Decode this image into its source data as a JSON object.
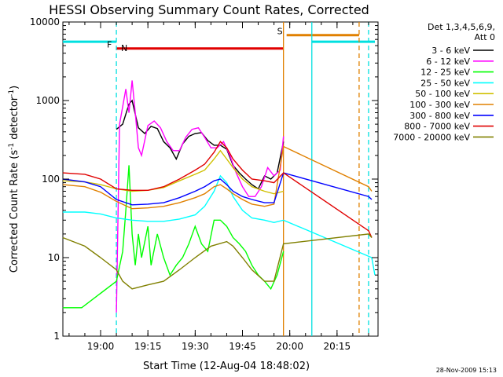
{
  "chart_data": {
    "type": "line",
    "title": "HESSI Observing Summary Count Rates, Corrected",
    "xlabel": "Start Time (12-Aug-04 18:48:02)",
    "ylabel_main": "Corrected Count Rate (s",
    "ylabel_sup1": "-1",
    "ylabel_mid": " detector",
    "ylabel_sup2": "-1",
    "ylabel_end": ")",
    "y_scale": "log",
    "ylim": [
      1,
      10000
    ],
    "xlim": [
      "18:48:02",
      "20:28:00"
    ],
    "x_ticks": [
      "19:00",
      "19:15",
      "19:30",
      "19:45",
      "20:00",
      "20:15"
    ],
    "y_ticks": [
      "1",
      "10",
      "100",
      "1000",
      "10000"
    ],
    "legend_header": [
      "Det 1,3,4,5,6,9,",
      "Att 0"
    ],
    "legend_position": "right",
    "footer_date": "28-Nov-2009 15:13",
    "markers": [
      {
        "label": "F",
        "color": "#e00000",
        "at": "19:05",
        "y": 4500
      },
      {
        "label": "N",
        "color": "#00c8c8",
        "at": "19:05",
        "y": 5600
      },
      {
        "label": "S",
        "color": "#e08000",
        "at": "19:59",
        "y": 6700
      }
    ],
    "flags": [
      {
        "name": "flare",
        "color": "#e00000",
        "from": "19:05",
        "to": "19:58",
        "value": 4600
      },
      {
        "name": "night-1",
        "color": "#00e0e0",
        "from": "18:48",
        "to": "19:05",
        "value": 5600
      },
      {
        "name": "night-2",
        "color": "#00e0e0",
        "from": "20:07",
        "to": "20:27",
        "value": 5600
      },
      {
        "name": "saa",
        "color": "#e08000",
        "from": "19:59",
        "to": "20:22",
        "value": 6800
      }
    ],
    "vlines": [
      {
        "color": "#00e0e0",
        "dashed": true,
        "at": "19:05"
      },
      {
        "color": "#e08000",
        "dashed": false,
        "at": "19:58"
      },
      {
        "color": "#00e0e0",
        "dashed": false,
        "at": "20:07"
      },
      {
        "color": "#e08000",
        "dashed": true,
        "at": "20:22"
      },
      {
        "color": "#00e0e0",
        "dashed": true,
        "at": "20:25"
      }
    ],
    "series": [
      {
        "name": "3 - 6 keV",
        "color": "#000000",
        "points": [
          [
            "19:05",
            430
          ],
          [
            "19:07",
            500
          ],
          [
            "19:09",
            900
          ],
          [
            "19:10",
            1000
          ],
          [
            "19:12",
            450
          ],
          [
            "19:14",
            380
          ],
          [
            "19:16",
            470
          ],
          [
            "19:18",
            440
          ],
          [
            "19:20",
            300
          ],
          [
            "19:22",
            250
          ],
          [
            "19:24",
            180
          ],
          [
            "19:26",
            280
          ],
          [
            "19:28",
            350
          ],
          [
            "19:30",
            380
          ],
          [
            "19:32",
            390
          ],
          [
            "19:34",
            310
          ],
          [
            "19:36",
            270
          ],
          [
            "19:38",
            270
          ],
          [
            "19:40",
            240
          ],
          [
            "19:42",
            150
          ],
          [
            "19:44",
            120
          ],
          [
            "19:46",
            100
          ],
          [
            "19:48",
            85
          ],
          [
            "19:50",
            75
          ],
          [
            "19:52",
            110
          ],
          [
            "19:54",
            100
          ],
          [
            "19:56",
            120
          ],
          [
            "19:58",
            300
          ]
        ]
      },
      {
        "name": "6 - 12 keV",
        "color": "#ff00ff",
        "points": [
          [
            "19:05",
            2
          ],
          [
            "19:06",
            500
          ],
          [
            "19:08",
            1400
          ],
          [
            "19:09",
            700
          ],
          [
            "19:10",
            1800
          ],
          [
            "19:11",
            700
          ],
          [
            "19:12",
            250
          ],
          [
            "19:13",
            200
          ],
          [
            "19:15",
            480
          ],
          [
            "19:17",
            550
          ],
          [
            "19:19",
            450
          ],
          [
            "19:21",
            300
          ],
          [
            "19:23",
            230
          ],
          [
            "19:25",
            230
          ],
          [
            "19:27",
            340
          ],
          [
            "19:29",
            430
          ],
          [
            "19:31",
            450
          ],
          [
            "19:33",
            340
          ],
          [
            "19:35",
            250
          ],
          [
            "19:37",
            250
          ],
          [
            "19:39",
            300
          ],
          [
            "19:41",
            200
          ],
          [
            "19:43",
            120
          ],
          [
            "19:45",
            80
          ],
          [
            "19:47",
            60
          ],
          [
            "19:49",
            60
          ],
          [
            "19:51",
            80
          ],
          [
            "19:53",
            140
          ],
          [
            "19:55",
            110
          ],
          [
            "19:57",
            130
          ],
          [
            "19:58",
            350
          ]
        ]
      },
      {
        "name": "12 - 25 keV",
        "color": "#00ff00",
        "points": [
          [
            "18:48",
            2.3
          ],
          [
            "18:54",
            2.3
          ],
          [
            "19:05",
            5
          ],
          [
            "19:07",
            12
          ],
          [
            "19:08",
            40
          ],
          [
            "19:09",
            150
          ],
          [
            "19:10",
            20
          ],
          [
            "19:11",
            8
          ],
          [
            "19:12",
            20
          ],
          [
            "19:13",
            10
          ],
          [
            "19:15",
            25
          ],
          [
            "19:16",
            8
          ],
          [
            "19:18",
            20
          ],
          [
            "19:20",
            10
          ],
          [
            "19:22",
            6
          ],
          [
            "19:24",
            8
          ],
          [
            "19:26",
            10
          ],
          [
            "19:28",
            15
          ],
          [
            "19:30",
            25
          ],
          [
            "19:32",
            15
          ],
          [
            "19:34",
            12
          ],
          [
            "19:36",
            30
          ],
          [
            "19:38",
            30
          ],
          [
            "19:40",
            25
          ],
          [
            "19:42",
            18
          ],
          [
            "19:44",
            15
          ],
          [
            "19:46",
            12
          ],
          [
            "19:48",
            8
          ],
          [
            "19:50",
            6
          ],
          [
            "19:52",
            5
          ],
          [
            "19:54",
            4
          ],
          [
            "19:56",
            6
          ],
          [
            "19:58",
            12
          ]
        ]
      },
      {
        "name": "25 - 50 keV",
        "color": "#00ffff",
        "points": [
          [
            "18:48",
            38
          ],
          [
            "18:55",
            38
          ],
          [
            "19:00",
            36
          ],
          [
            "19:05",
            32
          ],
          [
            "19:10",
            30
          ],
          [
            "19:15",
            29
          ],
          [
            "19:20",
            29
          ],
          [
            "19:25",
            31
          ],
          [
            "19:30",
            35
          ],
          [
            "19:33",
            45
          ],
          [
            "19:36",
            70
          ],
          [
            "19:38",
            110
          ],
          [
            "19:40",
            90
          ],
          [
            "19:42",
            60
          ],
          [
            "19:45",
            40
          ],
          [
            "19:48",
            32
          ],
          [
            "19:52",
            30
          ],
          [
            "19:55",
            28
          ],
          [
            "19:58",
            30
          ],
          [
            "20:26",
            10
          ],
          [
            "20:27",
            6
          ]
        ]
      },
      {
        "name": "50 - 100 keV",
        "color": "#d0c000",
        "points": [
          [
            "18:48",
            95
          ],
          [
            "18:55",
            92
          ],
          [
            "19:00",
            85
          ],
          [
            "19:05",
            75
          ],
          [
            "19:10",
            70
          ],
          [
            "19:15",
            72
          ],
          [
            "19:20",
            78
          ],
          [
            "19:25",
            95
          ],
          [
            "19:30",
            115
          ],
          [
            "19:33",
            130
          ],
          [
            "19:36",
            180
          ],
          [
            "19:38",
            230
          ],
          [
            "19:40",
            180
          ],
          [
            "19:42",
            140
          ],
          [
            "19:45",
            100
          ],
          [
            "19:48",
            80
          ],
          [
            "19:52",
            70
          ],
          [
            "19:55",
            65
          ],
          [
            "19:58",
            70
          ]
        ]
      },
      {
        "name": "100 - 300 keV",
        "color": "#e08000",
        "points": [
          [
            "18:48",
            85
          ],
          [
            "18:55",
            80
          ],
          [
            "19:00",
            68
          ],
          [
            "19:05",
            52
          ],
          [
            "19:10",
            42
          ],
          [
            "19:15",
            43
          ],
          [
            "19:20",
            45
          ],
          [
            "19:25",
            50
          ],
          [
            "19:30",
            58
          ],
          [
            "19:33",
            65
          ],
          [
            "19:36",
            80
          ],
          [
            "19:38",
            85
          ],
          [
            "19:40",
            75
          ],
          [
            "19:42",
            65
          ],
          [
            "19:45",
            55
          ],
          [
            "19:48",
            48
          ],
          [
            "19:52",
            45
          ],
          [
            "19:55",
            48
          ],
          [
            "19:58",
            260
          ],
          [
            "20:25",
            80
          ],
          [
            "20:26",
            70
          ]
        ]
      },
      {
        "name": "300 - 800 keV",
        "color": "#0000ff",
        "points": [
          [
            "18:48",
            100
          ],
          [
            "18:55",
            92
          ],
          [
            "19:00",
            80
          ],
          [
            "19:05",
            55
          ],
          [
            "19:10",
            47
          ],
          [
            "19:15",
            48
          ],
          [
            "19:20",
            50
          ],
          [
            "19:25",
            58
          ],
          [
            "19:30",
            70
          ],
          [
            "19:33",
            80
          ],
          [
            "19:36",
            95
          ],
          [
            "19:38",
            100
          ],
          [
            "19:40",
            85
          ],
          [
            "19:42",
            70
          ],
          [
            "19:45",
            60
          ],
          [
            "19:48",
            55
          ],
          [
            "19:52",
            50
          ],
          [
            "19:55",
            50
          ],
          [
            "19:58",
            120
          ],
          [
            "20:25",
            60
          ],
          [
            "20:26",
            55
          ]
        ]
      },
      {
        "name": "800 - 7000 keV",
        "color": "#e00000",
        "points": [
          [
            "18:48",
            120
          ],
          [
            "18:55",
            115
          ],
          [
            "19:00",
            100
          ],
          [
            "19:05",
            75
          ],
          [
            "19:10",
            72
          ],
          [
            "19:15",
            72
          ],
          [
            "19:20",
            80
          ],
          [
            "19:25",
            100
          ],
          [
            "19:30",
            130
          ],
          [
            "19:33",
            155
          ],
          [
            "19:36",
            220
          ],
          [
            "19:38",
            300
          ],
          [
            "19:40",
            250
          ],
          [
            "19:42",
            180
          ],
          [
            "19:45",
            130
          ],
          [
            "19:48",
            100
          ],
          [
            "19:52",
            95
          ],
          [
            "19:55",
            90
          ],
          [
            "19:58",
            120
          ],
          [
            "20:25",
            22
          ],
          [
            "20:26",
            18
          ]
        ]
      },
      {
        "name": "7000 - 20000 keV",
        "color": "#808000",
        "points": [
          [
            "18:48",
            18
          ],
          [
            "18:55",
            14
          ],
          [
            "19:00",
            10
          ],
          [
            "19:05",
            7
          ],
          [
            "19:07",
            5
          ],
          [
            "19:10",
            4
          ],
          [
            "19:15",
            4.5
          ],
          [
            "19:20",
            5
          ],
          [
            "19:25",
            7
          ],
          [
            "19:30",
            10
          ],
          [
            "19:35",
            14
          ],
          [
            "19:40",
            16
          ],
          [
            "19:42",
            14
          ],
          [
            "19:45",
            10
          ],
          [
            "19:48",
            7
          ],
          [
            "19:52",
            5
          ],
          [
            "19:55",
            5
          ],
          [
            "19:58",
            15
          ],
          [
            "20:25",
            20
          ],
          [
            "20:26",
            18
          ]
        ]
      }
    ]
  }
}
